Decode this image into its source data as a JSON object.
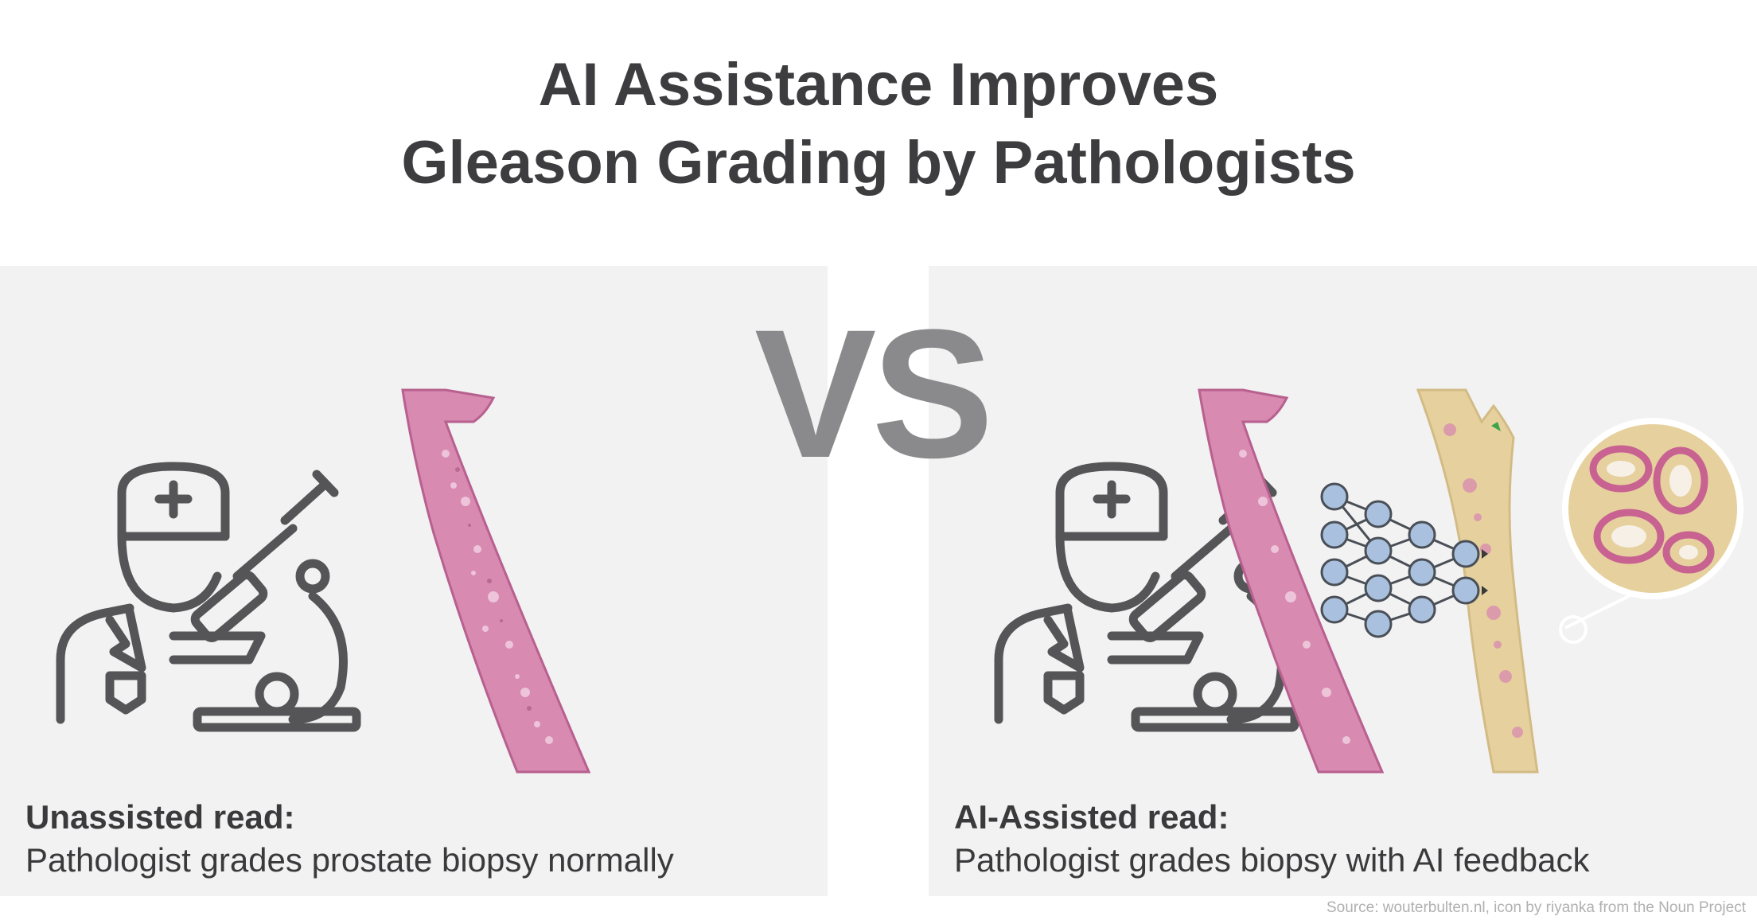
{
  "title": {
    "line1": "AI Assistance Improves",
    "line2": "Gleason Grading by Pathologists"
  },
  "vs_label": "VS",
  "left": {
    "heading": "Unassisted read:",
    "description": "Pathologist grades prostate biopsy normally"
  },
  "right": {
    "heading": "AI-Assisted read:",
    "description": "Pathologist grades biopsy with AI feedback"
  },
  "source": "Source: wouterbulten.nl, icon by riyanka from the Noun Project",
  "colors": {
    "icon": "#555557",
    "tissue": "#d88ab0",
    "tissue_dark": "#b8608f",
    "ai_overlay": "#e6d19e",
    "node": "#a9c1de",
    "node_stroke": "#4a4f57",
    "panel_bg": "#f2f2f2"
  }
}
